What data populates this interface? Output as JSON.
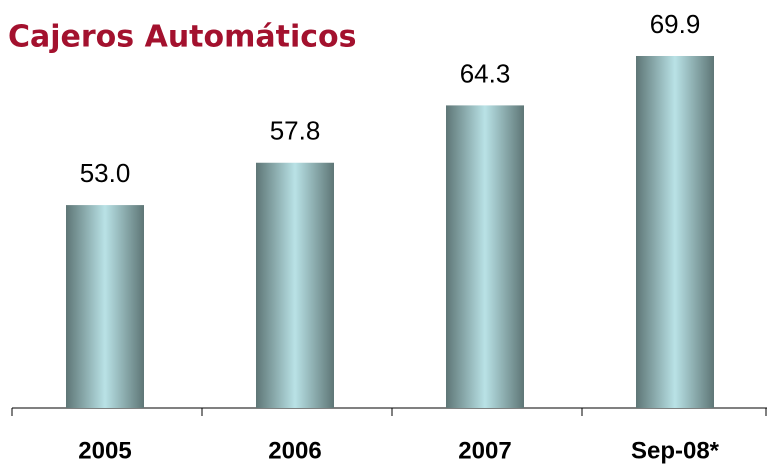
{
  "chart_data": {
    "type": "bar",
    "title": "Cajeros Automáticos",
    "categories": [
      "2005",
      "2006",
      "2007",
      "Sep-08*"
    ],
    "values": [
      53,
      57.8,
      64.3,
      69.9
    ],
    "value_labels": [
      "53.0",
      "57.8",
      "64.3",
      "69.9"
    ],
    "ylim": [
      30,
      75
    ]
  }
}
